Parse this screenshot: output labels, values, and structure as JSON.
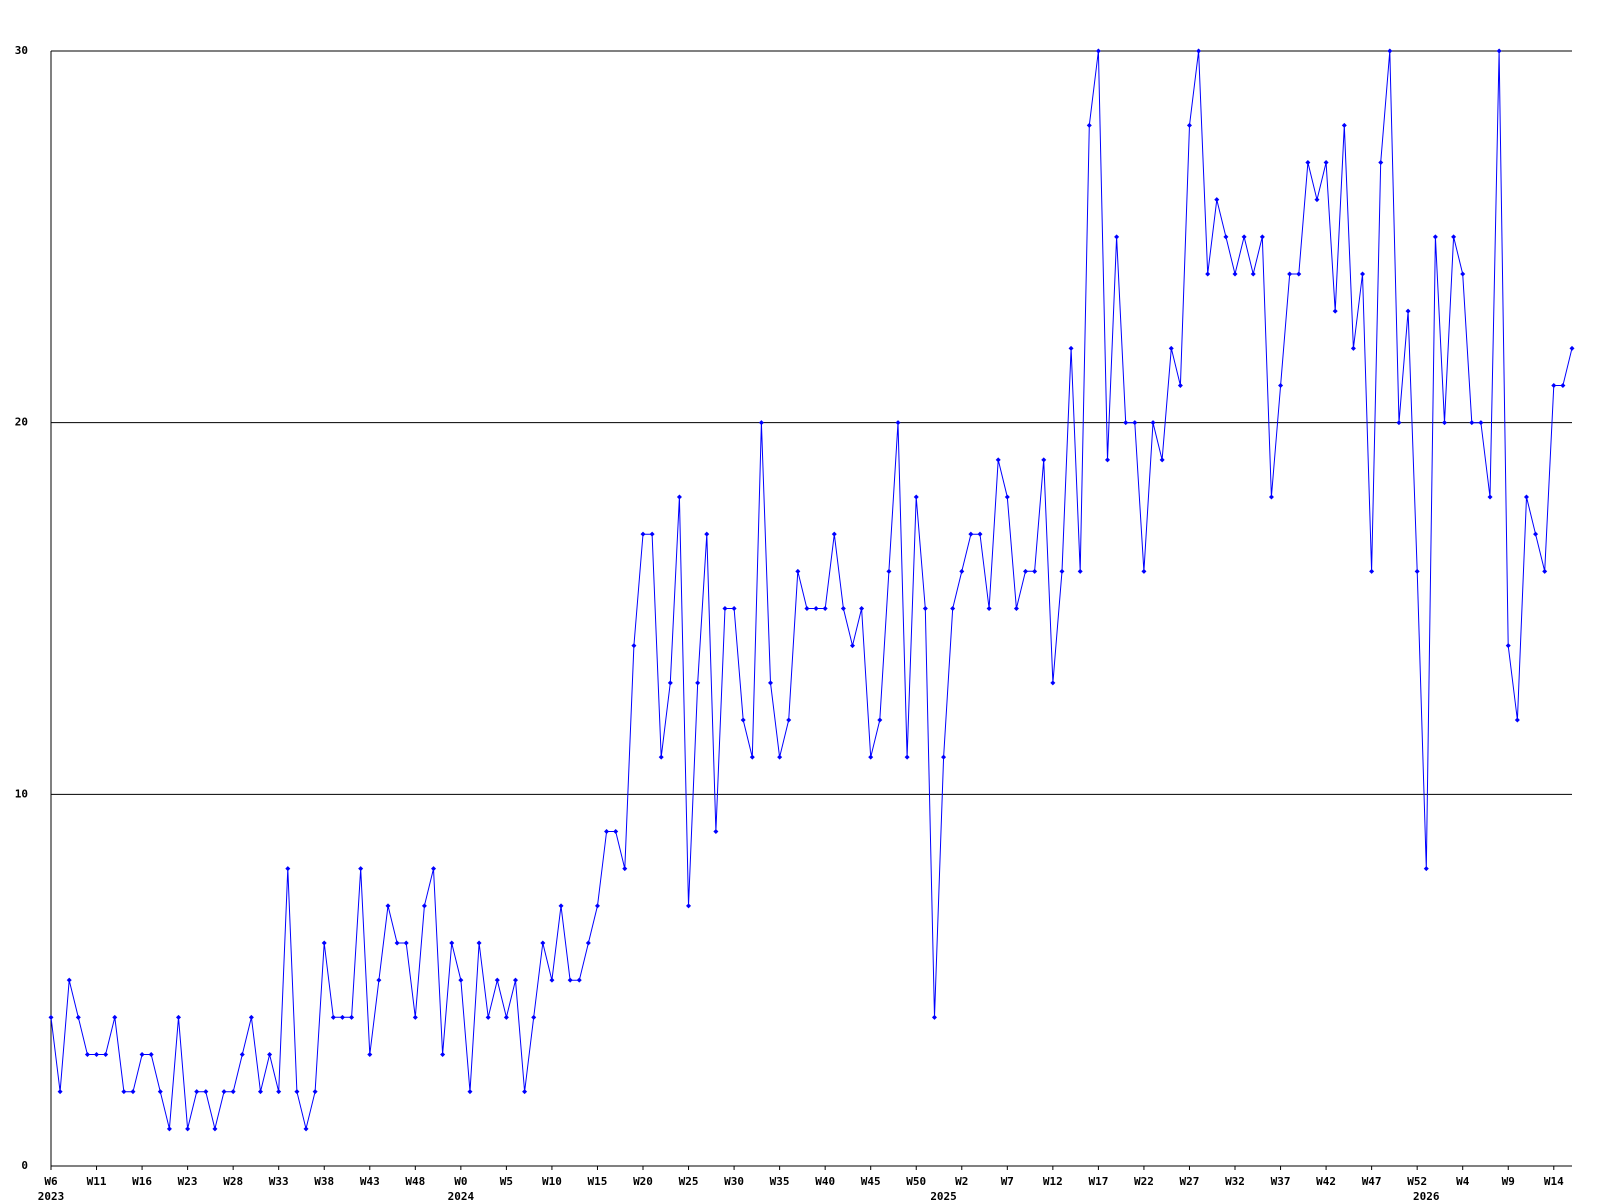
{
  "chart_data": {
    "type": "line",
    "categories": [
      "W6",
      null,
      null,
      null,
      null,
      "W11",
      null,
      null,
      null,
      null,
      "W16",
      null,
      null,
      null,
      null,
      "W23",
      null,
      null,
      null,
      null,
      "W28",
      null,
      null,
      null,
      null,
      "W33",
      null,
      null,
      null,
      null,
      "W38",
      null,
      null,
      null,
      null,
      "W43",
      null,
      null,
      null,
      null,
      "W48",
      null,
      null,
      null,
      null,
      "W0",
      null,
      null,
      null,
      null,
      "W5",
      null,
      null,
      null,
      null,
      "W10",
      null,
      null,
      null,
      null,
      "W15",
      null,
      null,
      null,
      null,
      "W20",
      null,
      null,
      null,
      null,
      "W25",
      null,
      null,
      null,
      null,
      "W30",
      null,
      null,
      null,
      null,
      "W35",
      null,
      null,
      null,
      null,
      "W40",
      null,
      null,
      null,
      null,
      "W45",
      null,
      null,
      null,
      null,
      "W50",
      null,
      null,
      null,
      null,
      "W2",
      null,
      null,
      null,
      null,
      "W7",
      null,
      null,
      null,
      null,
      "W12",
      null,
      null,
      null,
      null,
      "W17",
      null,
      null,
      null,
      null,
      "W22",
      null,
      null,
      null,
      null,
      "W27",
      null,
      null,
      null,
      null,
      "W32",
      null,
      null,
      null,
      null,
      "W37",
      null,
      null,
      null,
      null,
      "W42",
      null,
      null,
      null,
      null,
      "W47",
      null,
      null,
      null,
      null,
      "W52",
      null,
      null,
      null,
      null,
      "W4",
      null,
      null,
      null,
      null,
      "W9",
      null,
      null,
      null,
      null,
      "W14",
      null,
      null
    ],
    "year_categories": [
      "2023",
      null,
      null,
      null,
      null,
      null,
      null,
      null,
      null,
      null,
      null,
      null,
      null,
      null,
      null,
      null,
      null,
      null,
      null,
      null,
      null,
      null,
      null,
      null,
      null,
      null,
      null,
      null,
      null,
      null,
      null,
      null,
      null,
      null,
      null,
      null,
      null,
      null,
      null,
      null,
      null,
      null,
      null,
      null,
      null,
      "2024",
      null,
      null,
      null,
      null,
      null,
      null,
      null,
      null,
      null,
      null,
      null,
      null,
      null,
      null,
      null,
      null,
      null,
      null,
      null,
      null,
      null,
      null,
      null,
      null,
      null,
      null,
      null,
      null,
      null,
      null,
      null,
      null,
      null,
      null,
      null,
      null,
      null,
      null,
      null,
      null,
      null,
      null,
      null,
      null,
      null,
      null,
      null,
      null,
      null,
      null,
      null,
      null,
      "2025",
      null,
      null,
      null,
      null,
      null,
      null,
      null,
      null,
      null,
      null,
      null,
      null,
      null,
      null,
      null,
      null,
      null,
      null,
      null,
      null,
      null,
      null,
      null,
      null,
      null,
      null,
      null,
      null,
      null,
      null,
      null,
      null,
      null,
      null,
      null,
      null,
      null,
      null,
      null,
      null,
      null,
      null,
      null,
      null,
      null,
      null,
      null,
      null,
      null,
      null,
      null,
      null,
      "2026",
      null,
      null,
      null,
      null,
      null,
      null,
      null,
      null,
      null,
      null,
      null,
      null,
      null,
      null,
      null,
      null
    ],
    "series": [
      {
        "color": "#0000ff",
        "values": [
          4,
          2,
          5,
          4,
          3,
          3,
          3,
          4,
          2,
          2,
          3,
          3,
          2,
          1,
          4,
          1,
          2,
          2,
          1,
          2,
          2,
          3,
          4,
          2,
          3,
          2,
          8,
          2,
          1,
          2,
          6,
          4,
          4,
          4,
          8,
          3,
          5,
          7,
          6,
          6,
          4,
          7,
          8,
          3,
          6,
          5,
          2,
          6,
          4,
          5,
          4,
          5,
          2,
          4,
          6,
          5,
          7,
          5,
          5,
          6,
          7,
          9,
          9,
          8,
          14,
          17,
          17,
          11,
          13,
          18,
          7,
          13,
          17,
          9,
          15,
          15,
          12,
          11,
          20,
          13,
          11,
          12,
          16,
          15,
          15,
          15,
          17,
          15,
          14,
          15,
          11,
          12,
          16,
          20,
          11,
          18,
          15,
          4,
          11,
          15,
          16,
          17,
          17,
          15,
          19,
          18,
          15,
          16,
          16,
          19,
          13,
          16,
          22,
          16,
          28,
          30,
          19,
          25,
          20,
          20,
          16,
          20,
          19,
          22,
          21,
          28,
          30,
          24,
          26,
          25,
          24,
          25,
          24,
          25,
          18,
          21,
          24,
          24,
          27,
          26,
          27,
          23,
          28,
          22,
          24,
          16,
          27,
          30,
          20,
          23,
          16,
          8,
          25,
          20,
          25,
          24,
          20,
          20,
          18,
          30,
          14,
          12,
          18,
          17,
          16,
          21,
          21,
          22
        ]
      }
    ],
    "ylim": [
      0,
      30
    ],
    "yticks": [
      0,
      10,
      20,
      30
    ],
    "grid": true
  }
}
